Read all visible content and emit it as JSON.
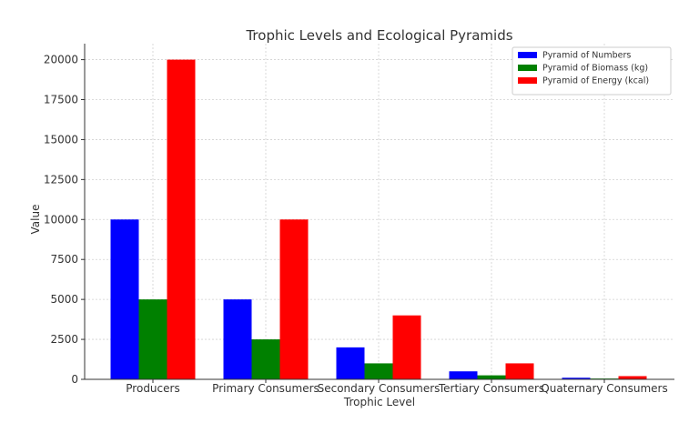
{
  "chart_data": {
    "type": "bar",
    "title": "Trophic Levels and Ecological Pyramids",
    "xlabel": "Trophic Level",
    "ylabel": "Value",
    "categories": [
      "Producers",
      "Primary Consumers",
      "Secondary Consumers",
      "Tertiary Consumers",
      "Quaternary Consumers"
    ],
    "series": [
      {
        "name": "Pyramid of Numbers",
        "color": "#0000ff",
        "values": [
          10000,
          5000,
          2000,
          500,
          100
        ]
      },
      {
        "name": "Pyramid of Biomass (kg)",
        "color": "#008000",
        "values": [
          5000,
          2500,
          1000,
          250,
          50
        ]
      },
      {
        "name": "Pyramid of Energy (kcal)",
        "color": "#ff0000",
        "values": [
          20000,
          10000,
          4000,
          1000,
          200
        ]
      }
    ],
    "ylim": [
      0,
      21000
    ],
    "yticks": [
      0,
      2500,
      5000,
      7500,
      10000,
      12500,
      15000,
      17500,
      20000
    ],
    "grid": true,
    "legend_position": "top-right"
  }
}
